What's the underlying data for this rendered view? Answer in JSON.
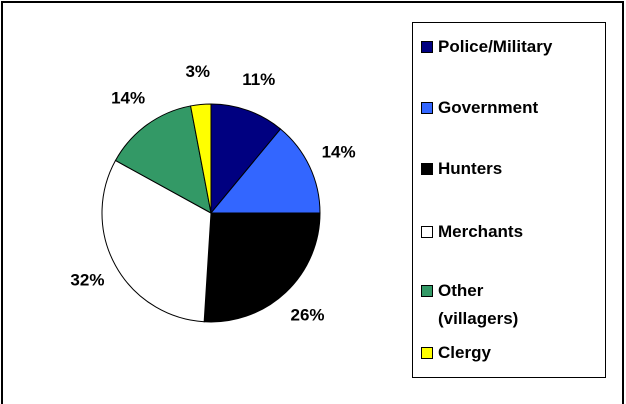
{
  "chart_data": {
    "type": "pie",
    "categories": [
      "Police/Military",
      "Government",
      "Hunters",
      "Merchants",
      "Other (villagers)",
      "Clergy"
    ],
    "values": [
      11,
      14,
      26,
      32,
      14,
      3
    ],
    "value_labels": [
      "11%",
      "14%",
      "26%",
      "32%",
      "14%",
      "3%"
    ],
    "colors": [
      "#000080",
      "#3366ff",
      "#000000",
      "#ffffff",
      "#339966",
      "#ffff00"
    ],
    "legend": "right"
  }
}
